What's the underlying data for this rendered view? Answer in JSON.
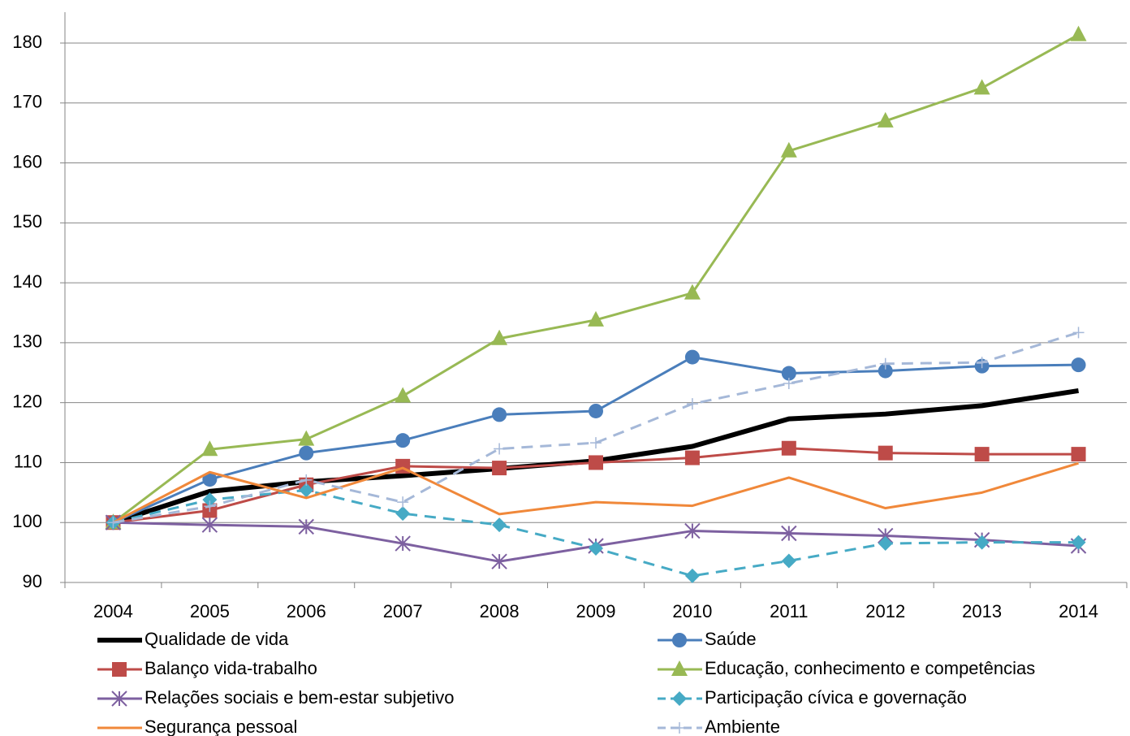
{
  "chart_data": {
    "type": "line",
    "categories": [
      "2004",
      "2005",
      "2006",
      "2007",
      "2008",
      "2009",
      "2010",
      "2011",
      "2012",
      "2013",
      "2014"
    ],
    "ylim": [
      90,
      180
    ],
    "yticks": [
      90,
      100,
      110,
      120,
      130,
      140,
      150,
      160,
      170,
      180
    ],
    "grid": true,
    "series": [
      {
        "name": "Qualidade de vida",
        "color": "#000000",
        "marker": "none",
        "dash": false,
        "width": 6,
        "values": [
          100,
          105.2,
          106.8,
          107.8,
          109,
          110.3,
          112.7,
          117.3,
          118.1,
          119.5,
          122
        ]
      },
      {
        "name": "Saúde",
        "color": "#4a7ebb",
        "marker": "circle",
        "dash": false,
        "width": 3,
        "values": [
          100,
          107.2,
          111.6,
          113.7,
          118,
          118.6,
          127.6,
          124.9,
          125.3,
          126.1,
          126.3
        ]
      },
      {
        "name": "Balanço vida-trabalho",
        "color": "#be4b48",
        "marker": "square",
        "dash": false,
        "width": 3,
        "values": [
          100,
          102,
          106.3,
          109.4,
          109.1,
          110,
          110.8,
          112.4,
          111.6,
          111.4,
          111.4
        ]
      },
      {
        "name": "Educação, conhecimento e competências",
        "color": "#98b954",
        "marker": "triangle",
        "dash": false,
        "width": 3,
        "values": [
          100,
          112.2,
          113.9,
          121.1,
          130.7,
          133.8,
          138.3,
          162,
          167,
          172.5,
          181.4
        ]
      },
      {
        "name": "Relações sociais e bem-estar subjetivo",
        "color": "#7d60a0",
        "marker": "star",
        "dash": false,
        "width": 3,
        "values": [
          100,
          99.6,
          99.3,
          96.5,
          93.5,
          96.1,
          98.6,
          98.2,
          97.8,
          97.1,
          96.1
        ]
      },
      {
        "name": "Participação cívica e governação",
        "color": "#46aac5",
        "marker": "diamond",
        "dash": true,
        "width": 3,
        "values": [
          100,
          103.8,
          105.4,
          101.5,
          99.6,
          95.7,
          91.1,
          93.6,
          96.5,
          96.7,
          96.7
        ]
      },
      {
        "name": "Segurança pessoal",
        "color": "#f0883a",
        "marker": "none",
        "dash": false,
        "width": 3,
        "values": [
          100,
          108.4,
          104.1,
          109.1,
          101.4,
          103.4,
          102.8,
          107.5,
          102.4,
          105,
          109.9
        ]
      },
      {
        "name": "Ambiente",
        "color": "#a5b8d8",
        "marker": "plus",
        "dash": true,
        "width": 3,
        "values": [
          100,
          102.7,
          107.1,
          103.4,
          112.3,
          113.3,
          119.8,
          123.2,
          126.5,
          126.7,
          131.7
        ]
      }
    ]
  }
}
